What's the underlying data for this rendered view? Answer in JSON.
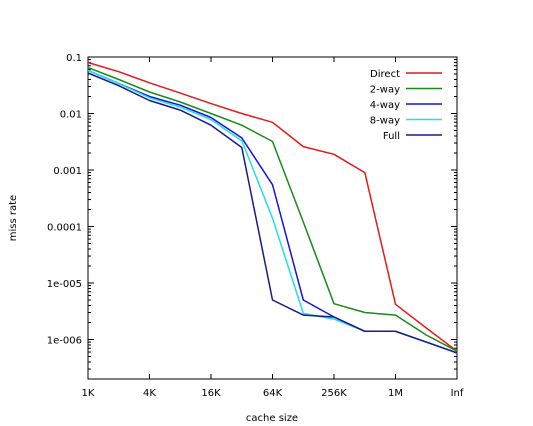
{
  "chart_data": {
    "type": "line",
    "title": "",
    "xlabel": "cache size",
    "ylabel": "miss rate",
    "x_categories": [
      "1K",
      "2K",
      "4K",
      "8K",
      "16K",
      "32K",
      "64K",
      "128K",
      "256K",
      "512K",
      "1M",
      "2M",
      "Inf"
    ],
    "x_tick_labels": [
      "1K",
      "4K",
      "16K",
      "64K",
      "256K",
      "1M",
      "Inf"
    ],
    "y_scale": "log",
    "ylim": [
      2e-07,
      0.1
    ],
    "y_ticks": [
      0.1,
      0.01,
      0.001,
      0.0001,
      1e-05,
      1e-06
    ],
    "y_tick_labels": [
      "0.1",
      "0.01",
      "0.001",
      "0.0001",
      "1e-005",
      "1e-006"
    ],
    "grid": false,
    "legend_position": "top-right",
    "series": [
      {
        "name": "Direct",
        "color": "#e41a1c",
        "values": [
          0.08,
          0.055,
          0.035,
          0.023,
          0.015,
          0.01,
          0.007,
          0.0026,
          0.0019,
          0.0009,
          4.2e-06,
          1.6e-06,
          6.2e-07
        ]
      },
      {
        "name": "2-way",
        "color": "#1a8a1a",
        "values": [
          0.065,
          0.04,
          0.024,
          0.016,
          0.01,
          0.0062,
          0.0032,
          0.00012,
          4.3e-06,
          3e-06,
          2.7e-06,
          1.2e-06,
          6.2e-07
        ]
      },
      {
        "name": "4-way",
        "color": "#1414e0",
        "values": [
          0.058,
          0.034,
          0.02,
          0.014,
          0.0085,
          0.0037,
          0.00055,
          5e-06,
          2.5e-06,
          1.4e-06,
          1.4e-06,
          9e-07,
          5.8e-07
        ]
      },
      {
        "name": "8-way",
        "color": "#1ee0e6",
        "values": [
          0.058,
          0.034,
          0.019,
          0.013,
          0.0078,
          0.0033,
          0.00014,
          2.9e-06,
          2.3e-06,
          1.4e-06,
          1.4e-06,
          9e-07,
          5.8e-07
        ]
      },
      {
        "name": "Full",
        "color": "#1a1a8a",
        "values": [
          0.052,
          0.031,
          0.017,
          0.0115,
          0.0062,
          0.0025,
          5e-06,
          2.7e-06,
          2.5e-06,
          1.4e-06,
          1.4e-06,
          9e-07,
          5.8e-07
        ]
      }
    ]
  }
}
